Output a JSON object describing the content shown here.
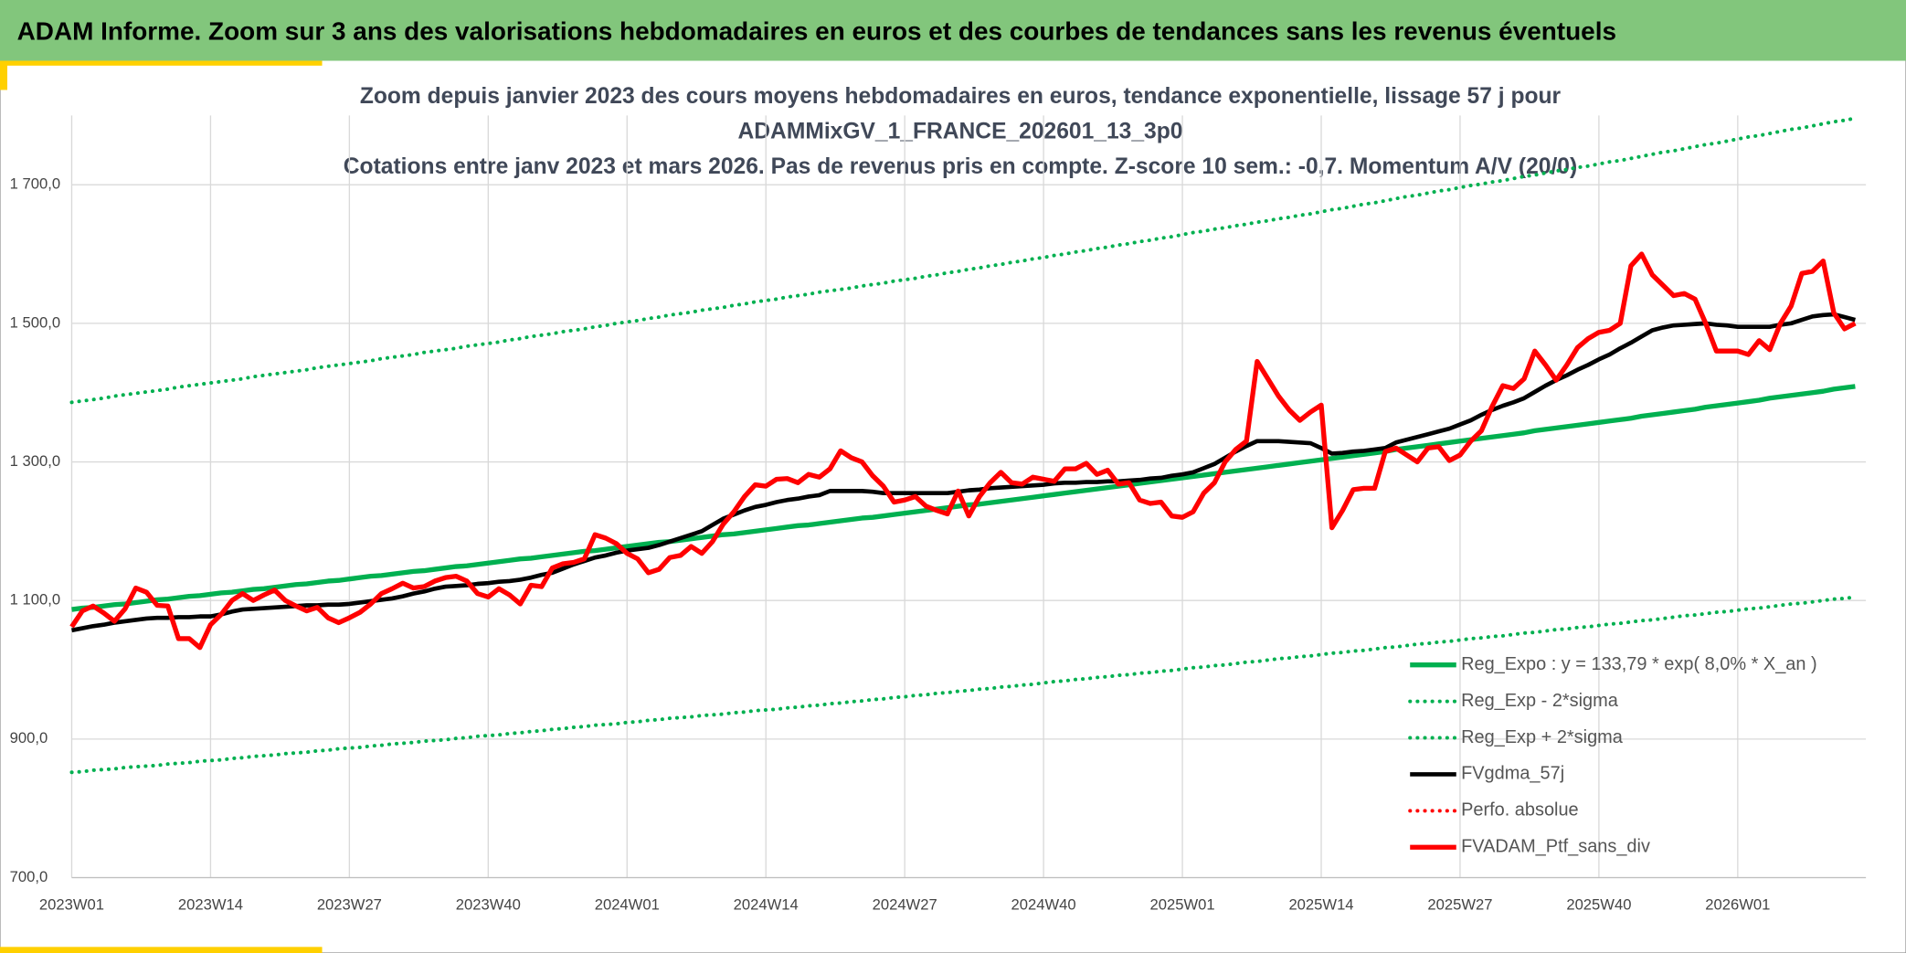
{
  "page_title": "ADAM Informe. Zoom sur 3 ans des valorisations hebdomadaires en euros et des courbes de tendances sans les revenus éventuels",
  "chart_data": {
    "type": "line",
    "title": [
      "Zoom depuis janvier 2023 des cours moyens hebdomadaires en euros, tendance exponentielle, lissage 57 j pour",
      "ADAMMixGV_1_FRANCE_202601_13_3p0",
      "Cotations entre janv 2023 et mars 2026. Pas de revenus pris en compte. Z-score 10 sem.: -0,7. Momentum A/V (20/0)"
    ],
    "categories": [
      "2023W01",
      null,
      null,
      null,
      null,
      null,
      null,
      null,
      null,
      null,
      null,
      null,
      null,
      "2023W14",
      null,
      null,
      null,
      null,
      null,
      null,
      null,
      null,
      null,
      null,
      null,
      null,
      "2023W27",
      null,
      null,
      null,
      null,
      null,
      null,
      null,
      null,
      null,
      null,
      null,
      null,
      "2023W40",
      null,
      null,
      null,
      null,
      null,
      null,
      null,
      null,
      null,
      null,
      null,
      null,
      "2024W01",
      null,
      null,
      null,
      null,
      null,
      null,
      null,
      null,
      null,
      null,
      null,
      null,
      "2024W14",
      null,
      null,
      null,
      null,
      null,
      null,
      null,
      null,
      null,
      null,
      null,
      null,
      "2024W27",
      null,
      null,
      null,
      null,
      null,
      null,
      null,
      null,
      null,
      null,
      null,
      null,
      "2024W40",
      null,
      null,
      null,
      null,
      null,
      null,
      null,
      null,
      null,
      null,
      null,
      null,
      "2025W01",
      null,
      null,
      null,
      null,
      null,
      null,
      null,
      null,
      null,
      null,
      null,
      null,
      "2025W14",
      null,
      null,
      null,
      null,
      null,
      null,
      null,
      null,
      null,
      null,
      null,
      null,
      "2025W27",
      null,
      null,
      null,
      null,
      null,
      null,
      null,
      null,
      null,
      null,
      null,
      null,
      "2025W40",
      null,
      null,
      null,
      null,
      null,
      null,
      null,
      null,
      null,
      null,
      null,
      null,
      "2026W01",
      null,
      null,
      null,
      null,
      null,
      null,
      null,
      null,
      null,
      null,
      null
    ],
    "ylim": [
      700,
      1800
    ],
    "yticks": [
      {
        "value": 700,
        "label": "700,0"
      },
      {
        "value": 900,
        "label": "900,0"
      },
      {
        "value": 1100,
        "label": "1 100,0"
      },
      {
        "value": 1300,
        "label": "1 300,0"
      },
      {
        "value": 1500,
        "label": "1 500,0"
      },
      {
        "value": 1700,
        "label": "1 700,0"
      }
    ],
    "grid": true,
    "legend": "lower right",
    "series": [
      {
        "name": "Reg_Expo : y = 133,79 * exp( 8,0% *  X_an )",
        "color": "#00b050",
        "style": "solid",
        "values": [
          1087,
          1089,
          1090,
          1092,
          1094,
          1095,
          1097,
          1099,
          1101,
          1102,
          1104,
          1106,
          1107,
          1109,
          1111,
          1112,
          1114,
          1116,
          1117,
          1119,
          1121,
          1123,
          1124,
          1126,
          1128,
          1129,
          1131,
          1133,
          1135,
          1136,
          1138,
          1140,
          1142,
          1143,
          1145,
          1147,
          1149,
          1150,
          1152,
          1154,
          1156,
          1158,
          1160,
          1161,
          1163,
          1165,
          1167,
          1169,
          1171,
          1172,
          1174,
          1176,
          1178,
          1180,
          1182,
          1184,
          1185,
          1187,
          1189,
          1191,
          1193,
          1195,
          1196,
          1198,
          1200,
          1202,
          1204,
          1206,
          1208,
          1209,
          1211,
          1213,
          1215,
          1217,
          1219,
          1220,
          1222,
          1224,
          1226,
          1228,
          1230,
          1232,
          1234,
          1236,
          1238,
          1239,
          1241,
          1243,
          1245,
          1247,
          1249,
          1251,
          1253,
          1255,
          1257,
          1259,
          1261,
          1263,
          1265,
          1267,
          1269,
          1271,
          1273,
          1275,
          1277,
          1279,
          1281,
          1283,
          1285,
          1287,
          1289,
          1291,
          1293,
          1295,
          1297,
          1299,
          1301,
          1303,
          1305,
          1307,
          1309,
          1311,
          1313,
          1315,
          1318,
          1320,
          1322,
          1324,
          1326,
          1328,
          1330,
          1332,
          1334,
          1336,
          1338,
          1340,
          1342,
          1345,
          1347,
          1349,
          1351,
          1353,
          1355,
          1357,
          1359,
          1361,
          1363,
          1366,
          1368,
          1370,
          1372,
          1374,
          1376,
          1379,
          1381,
          1383,
          1385,
          1387,
          1389,
          1392,
          1394,
          1396,
          1398,
          1400,
          1402,
          1405,
          1407,
          1409
        ]
      },
      {
        "name": "Reg_Exp - 2*sigma",
        "color": "#00b050",
        "style": "dotted",
        "values": [
          852,
          853,
          855,
          856,
          857,
          859,
          860,
          861,
          862,
          864,
          865,
          866,
          868,
          869,
          870,
          872,
          873,
          875,
          876,
          877,
          879,
          880,
          881,
          883,
          884,
          886,
          887,
          888,
          890,
          891,
          893,
          894,
          895,
          897,
          898,
          899,
          901,
          902,
          904,
          905,
          906,
          908,
          909,
          911,
          912,
          914,
          915,
          917,
          918,
          920,
          921,
          922,
          924,
          925,
          927,
          928,
          930,
          931,
          932,
          934,
          935,
          936,
          938,
          939,
          941,
          942,
          943,
          945,
          946,
          948,
          949,
          951,
          952,
          954,
          955,
          957,
          958,
          960,
          961,
          963,
          964,
          966,
          967,
          969,
          970,
          972,
          973,
          975,
          976,
          978,
          979,
          981,
          983,
          984,
          986,
          987,
          989,
          990,
          992,
          993,
          995,
          996,
          998,
          999,
          1001,
          1003,
          1004,
          1006,
          1007,
          1009,
          1011,
          1012,
          1014,
          1016,
          1017,
          1019,
          1020,
          1022,
          1024,
          1025,
          1027,
          1028,
          1030,
          1032,
          1033,
          1035,
          1037,
          1038,
          1040,
          1041,
          1043,
          1045,
          1046,
          1048,
          1049,
          1051,
          1053,
          1054,
          1056,
          1058,
          1059,
          1061,
          1062,
          1064,
          1066,
          1067,
          1069,
          1071,
          1072,
          1074,
          1076,
          1078,
          1079,
          1081,
          1083,
          1084,
          1086,
          1088,
          1089,
          1091,
          1093,
          1095,
          1096,
          1098,
          1100,
          1102,
          1103,
          1105
        ]
      },
      {
        "name": "Reg_Exp + 2*sigma",
        "color": "#00b050",
        "style": "dotted",
        "values": [
          1386,
          1388,
          1390,
          1392,
          1395,
          1397,
          1399,
          1401,
          1403,
          1405,
          1408,
          1410,
          1412,
          1414,
          1416,
          1418,
          1420,
          1423,
          1425,
          1427,
          1429,
          1431,
          1433,
          1436,
          1438,
          1440,
          1442,
          1444,
          1446,
          1449,
          1451,
          1453,
          1455,
          1458,
          1460,
          1462,
          1464,
          1467,
          1469,
          1471,
          1473,
          1476,
          1478,
          1481,
          1483,
          1485,
          1488,
          1490,
          1492,
          1495,
          1497,
          1500,
          1502,
          1504,
          1507,
          1509,
          1512,
          1514,
          1516,
          1519,
          1521,
          1523,
          1526,
          1528,
          1531,
          1533,
          1535,
          1538,
          1540,
          1542,
          1545,
          1547,
          1549,
          1551,
          1554,
          1556,
          1558,
          1561,
          1563,
          1565,
          1568,
          1570,
          1573,
          1575,
          1578,
          1580,
          1583,
          1585,
          1588,
          1590,
          1593,
          1595,
          1598,
          1600,
          1603,
          1605,
          1608,
          1610,
          1613,
          1615,
          1618,
          1620,
          1623,
          1625,
          1628,
          1631,
          1633,
          1636,
          1638,
          1641,
          1643,
          1646,
          1648,
          1651,
          1653,
          1656,
          1658,
          1661,
          1664,
          1666,
          1669,
          1672,
          1674,
          1677,
          1680,
          1683,
          1685,
          1688,
          1691,
          1693,
          1696,
          1699,
          1701,
          1704,
          1706,
          1709,
          1712,
          1714,
          1717,
          1720,
          1722,
          1725,
          1727,
          1730,
          1733,
          1735,
          1738,
          1741,
          1744,
          1747,
          1749,
          1752,
          1755,
          1758,
          1760,
          1763,
          1766,
          1769,
          1771,
          1774,
          1777,
          1780,
          1782,
          1785,
          1788,
          1791,
          1793,
          1796
        ]
      },
      {
        "name": "FVgdma_57j",
        "color": "#000000",
        "style": "solid",
        "values": [
          1057,
          1060,
          1063,
          1065,
          1068,
          1070,
          1072,
          1074,
          1075,
          1075,
          1076,
          1076,
          1077,
          1077,
          1080,
          1084,
          1087,
          1088,
          1089,
          1090,
          1091,
          1092,
          1093,
          1093,
          1094,
          1094,
          1095,
          1097,
          1099,
          1101,
          1103,
          1106,
          1110,
          1113,
          1117,
          1120,
          1121,
          1122,
          1124,
          1125,
          1127,
          1128,
          1130,
          1133,
          1137,
          1140,
          1146,
          1152,
          1157,
          1162,
          1165,
          1169,
          1172,
          1174,
          1176,
          1180,
          1185,
          1190,
          1195,
          1200,
          1209,
          1218,
          1224,
          1230,
          1235,
          1238,
          1242,
          1245,
          1247,
          1250,
          1252,
          1258,
          1258,
          1258,
          1258,
          1257,
          1255,
          1255,
          1255,
          1255,
          1255,
          1255,
          1255,
          1257,
          1259,
          1260,
          1262,
          1263,
          1264,
          1265,
          1266,
          1267,
          1269,
          1270,
          1270,
          1271,
          1271,
          1272,
          1272,
          1273,
          1274,
          1276,
          1277,
          1280,
          1282,
          1285,
          1291,
          1297,
          1306,
          1315,
          1323,
          1330,
          1330,
          1330,
          1329,
          1328,
          1327,
          1320,
          1312,
          1313,
          1315,
          1316,
          1318,
          1320,
          1328,
          1332,
          1336,
          1340,
          1344,
          1348,
          1354,
          1360,
          1368,
          1375,
          1381,
          1386,
          1392,
          1401,
          1410,
          1418,
          1425,
          1433,
          1440,
          1448,
          1455,
          1464,
          1472,
          1481,
          1490,
          1494,
          1497,
          1498,
          1499,
          1500,
          1498,
          1497,
          1495,
          1495,
          1495,
          1495,
          1498,
          1500,
          1505,
          1510,
          1512,
          1513,
          1509,
          1505
        ]
      },
      {
        "name": "Perfo. absolue",
        "color": "#ff0000",
        "style": "dotted"
      },
      {
        "name": "FVADAM_Ptf_sans_div",
        "color": "#ff0000",
        "style": "solid",
        "values": [
          1062,
          1085,
          1092,
          1082,
          1070,
          1088,
          1118,
          1112,
          1093,
          1092,
          1045,
          1045,
          1032,
          1065,
          1080,
          1100,
          1110,
          1100,
          1108,
          1115,
          1100,
          1092,
          1085,
          1090,
          1075,
          1068,
          1075,
          1083,
          1095,
          1110,
          1117,
          1125,
          1118,
          1120,
          1128,
          1133,
          1135,
          1128,
          1110,
          1105,
          1117,
          1108,
          1095,
          1122,
          1120,
          1147,
          1153,
          1155,
          1160,
          1195,
          1190,
          1182,
          1168,
          1160,
          1140,
          1145,
          1162,
          1165,
          1178,
          1168,
          1185,
          1210,
          1228,
          1250,
          1267,
          1265,
          1275,
          1276,
          1270,
          1282,
          1278,
          1290,
          1316,
          1306,
          1300,
          1280,
          1265,
          1242,
          1245,
          1250,
          1236,
          1230,
          1225,
          1258,
          1222,
          1250,
          1270,
          1285,
          1270,
          1268,
          1278,
          1275,
          1272,
          1290,
          1290,
          1298,
          1282,
          1288,
          1268,
          1270,
          1245,
          1240,
          1242,
          1222,
          1220,
          1228,
          1255,
          1270,
          1300,
          1318,
          1330,
          1445,
          1420,
          1395,
          1375,
          1360,
          1372,
          1382,
          1205,
          1230,
          1260,
          1262,
          1262,
          1315,
          1320,
          1310,
          1300,
          1320,
          1322,
          1302,
          1310,
          1330,
          1345,
          1380,
          1410,
          1406,
          1420,
          1460,
          1440,
          1418,
          1440,
          1465,
          1478,
          1487,
          1490,
          1500,
          1583,
          1600,
          1570,
          1555,
          1540,
          1543,
          1535,
          1500,
          1460,
          1460,
          1460,
          1455,
          1475,
          1462,
          1500,
          1525,
          1572,
          1575,
          1590,
          1515,
          1492,
          1500
        ]
      }
    ]
  }
}
